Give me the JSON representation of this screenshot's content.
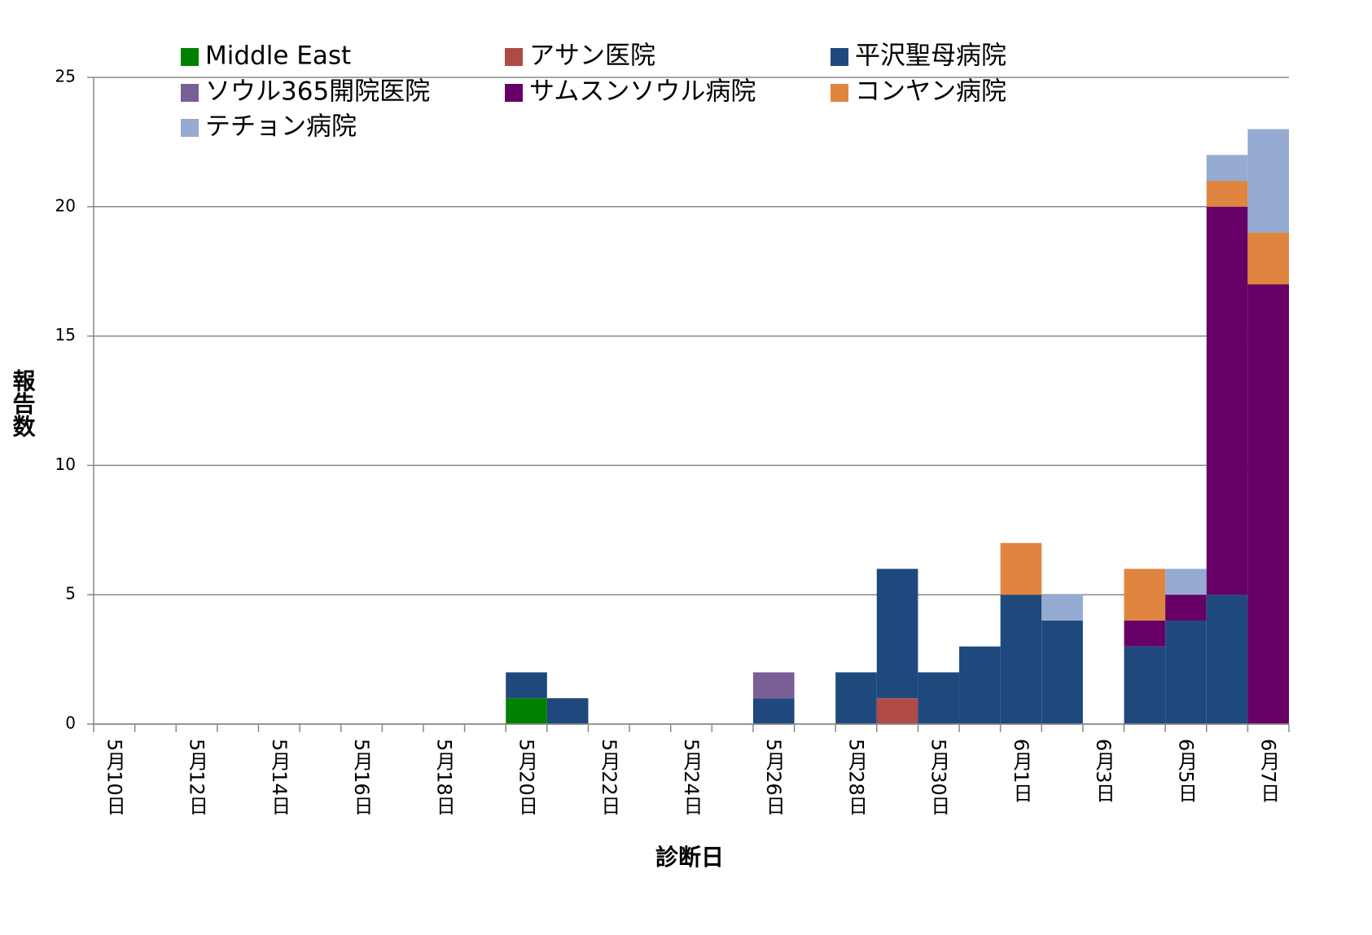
{
  "chart_data": {
    "type": "bar",
    "stacked": true,
    "x_label": "診断日",
    "y_label": "報告数",
    "categories": [
      "5月10日",
      null,
      "5月12日",
      null,
      "5月14日",
      null,
      "5月16日",
      null,
      "5月18日",
      null,
      "5月20日",
      null,
      "5月22日",
      null,
      "5月24日",
      null,
      "5月26日",
      null,
      "5月28日",
      null,
      "5月30日",
      null,
      "6月1日",
      null,
      "6月3日",
      null,
      "6月5日",
      null,
      "6月7日"
    ],
    "series": [
      {
        "name": "Middle East",
        "color": "#008000",
        "values": [
          0,
          0,
          0,
          0,
          0,
          0,
          0,
          0,
          0,
          0,
          1,
          0,
          0,
          0,
          0,
          0,
          0,
          0,
          0,
          0,
          0,
          0,
          0,
          0,
          0,
          0,
          0,
          0,
          0
        ]
      },
      {
        "name": "アサン医院",
        "color": "#b04a45",
        "values": [
          0,
          0,
          0,
          0,
          0,
          0,
          0,
          0,
          0,
          0,
          0,
          0,
          0,
          0,
          0,
          0,
          0,
          0,
          0,
          1,
          0,
          0,
          0,
          0,
          0,
          0,
          0,
          0,
          0
        ]
      },
      {
        "name": "平沢聖母病院",
        "color": "#1f497d",
        "values": [
          0,
          0,
          0,
          0,
          0,
          0,
          0,
          0,
          0,
          0,
          1,
          1,
          0,
          0,
          0,
          0,
          1,
          0,
          2,
          5,
          2,
          3,
          5,
          4,
          0,
          3,
          4,
          5,
          0
        ]
      },
      {
        "name": "ソウル365開院医院",
        "color": "#7a5f97",
        "values": [
          0,
          0,
          0,
          0,
          0,
          0,
          0,
          0,
          0,
          0,
          0,
          0,
          0,
          0,
          0,
          0,
          1,
          0,
          0,
          0,
          0,
          0,
          0,
          0,
          0,
          0,
          0,
          0,
          0
        ]
      },
      {
        "name": "サムスンソウル病院",
        "color": "#660066",
        "values": [
          0,
          0,
          0,
          0,
          0,
          0,
          0,
          0,
          0,
          0,
          0,
          0,
          0,
          0,
          0,
          0,
          0,
          0,
          0,
          0,
          0,
          0,
          0,
          0,
          0,
          1,
          1,
          15,
          17
        ]
      },
      {
        "name": "コンヤン病院",
        "color": "#e0853f",
        "values": [
          0,
          0,
          0,
          0,
          0,
          0,
          0,
          0,
          0,
          0,
          0,
          0,
          0,
          0,
          0,
          0,
          0,
          0,
          0,
          0,
          0,
          0,
          2,
          0,
          0,
          2,
          0,
          1,
          2
        ]
      },
      {
        "name": "テチョン病院",
        "color": "#95abd2",
        "values": [
          0,
          0,
          0,
          0,
          0,
          0,
          0,
          0,
          0,
          0,
          0,
          0,
          0,
          0,
          0,
          0,
          0,
          0,
          0,
          0,
          0,
          0,
          0,
          1,
          0,
          0,
          1,
          1,
          4
        ]
      }
    ],
    "ylim": [
      0,
      25
    ],
    "yticks": [
      0,
      5,
      10,
      15,
      20,
      25
    ],
    "grid": true,
    "legend": "top"
  }
}
